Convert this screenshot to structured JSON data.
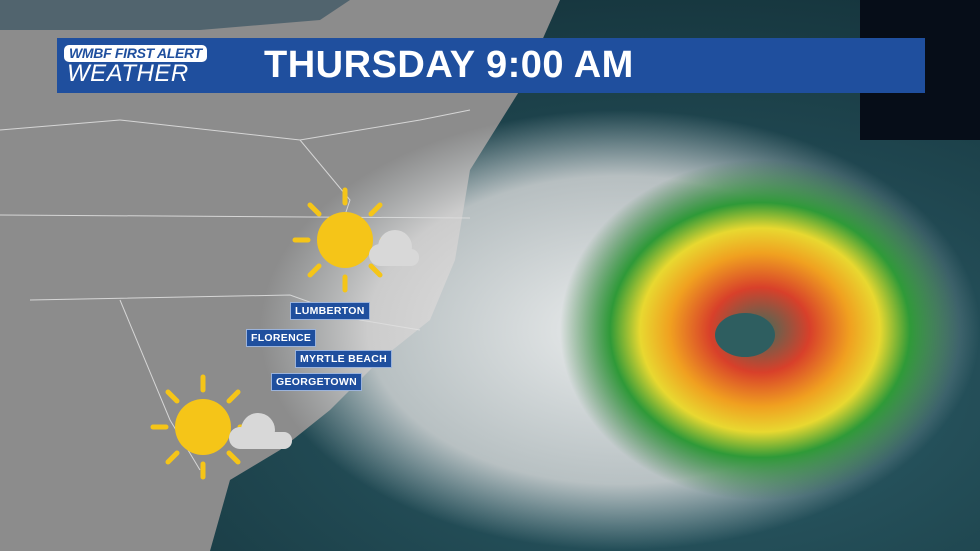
{
  "header": {
    "logo_line1": "WMBF FIRST ALERT",
    "logo_line2": "WEATHER",
    "title": "THURSDAY 9:00 AM"
  },
  "cities": [
    "LUMBERTON",
    "FLORENCE",
    "MYRTLE BEACH",
    "GEORGETOWN"
  ],
  "icons": [
    "sun-behind-cloud-icon",
    "sun-behind-cloud-icon"
  ],
  "colors": {
    "banner": "#1f4f9e",
    "land": "#8a8a8a",
    "ocean": "#1f4a55",
    "sun": "#f5c518"
  }
}
